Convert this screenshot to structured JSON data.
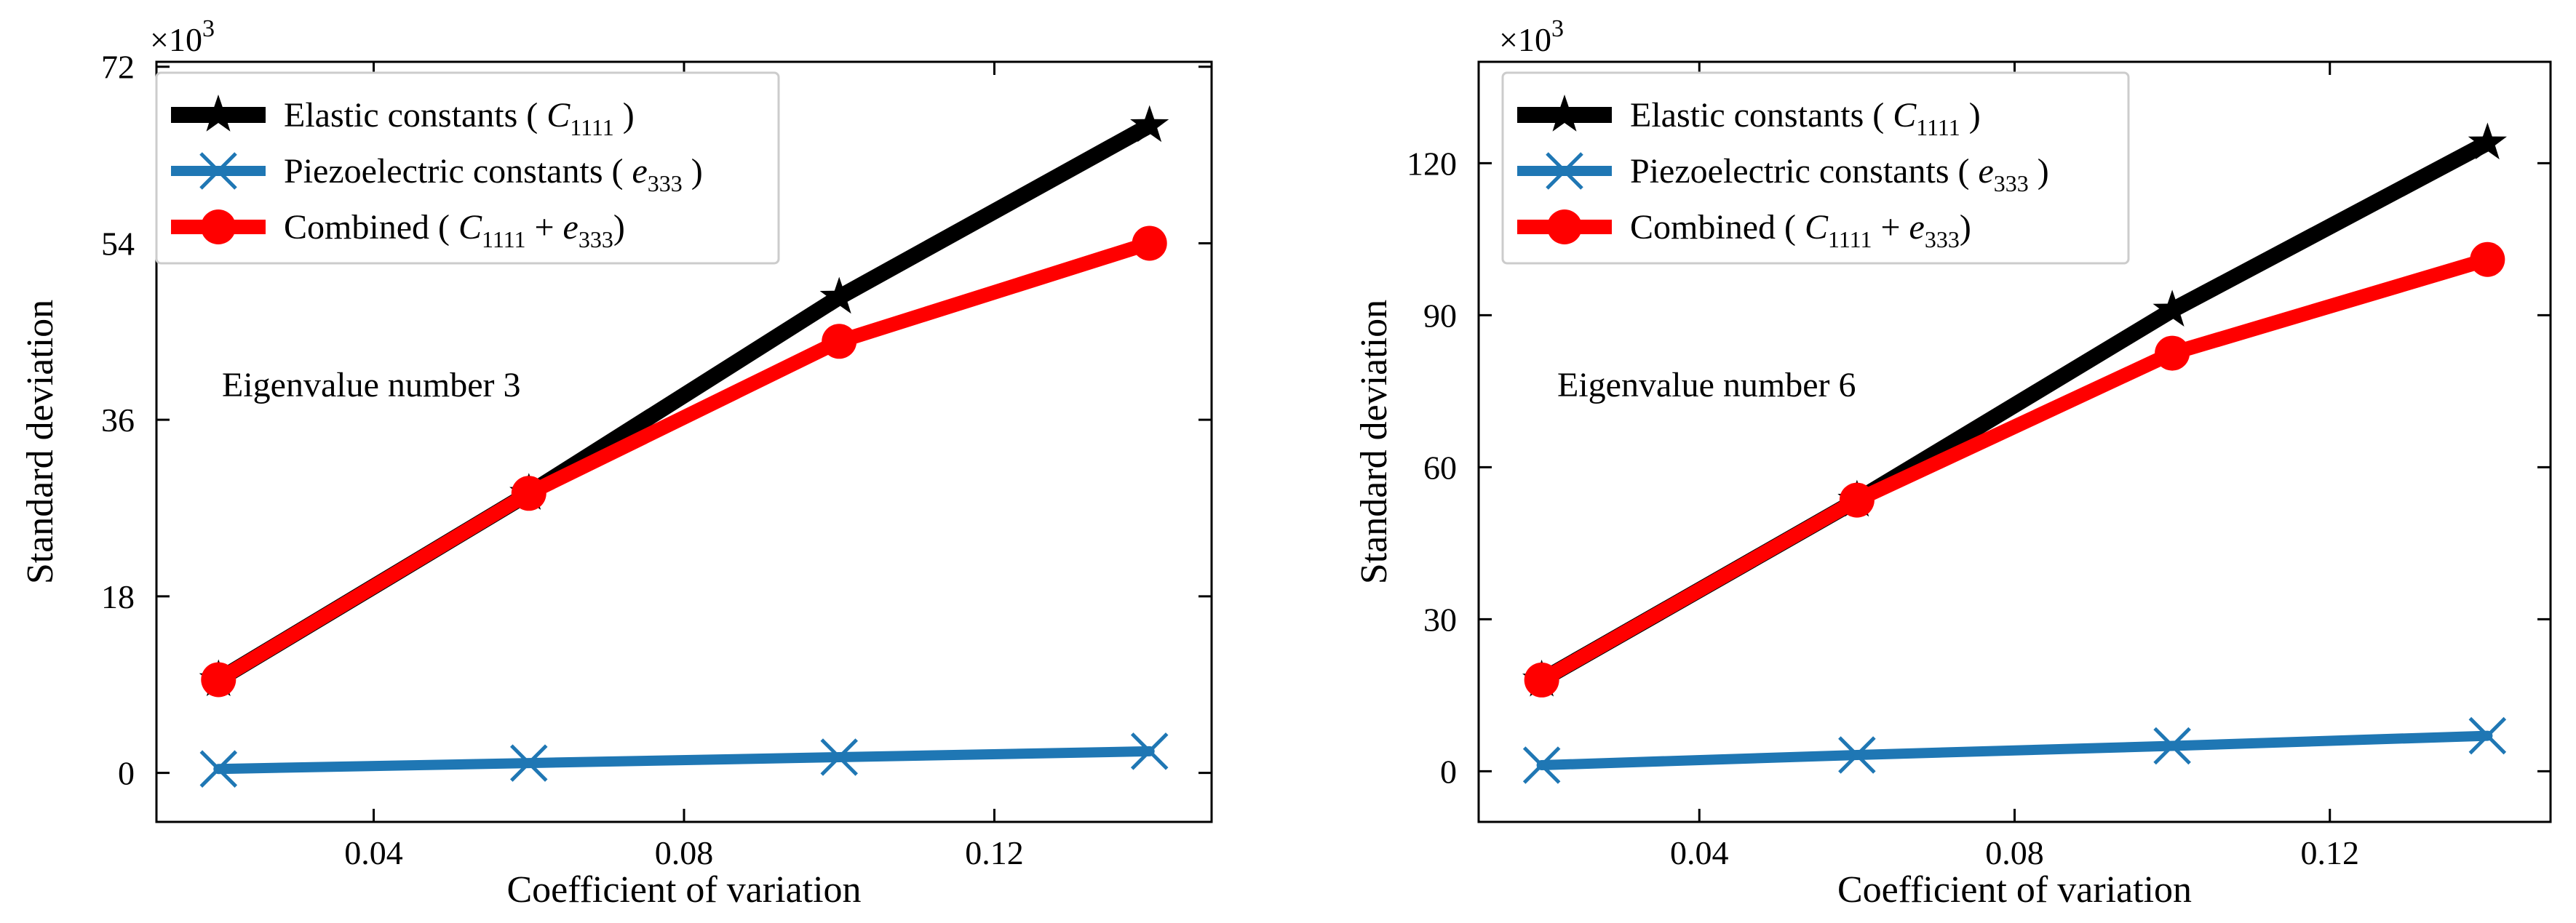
{
  "chart_data": [
    {
      "type": "line",
      "annotation": "Eigenvalue number 3",
      "multiplier": "×10",
      "multiplier_exp": "3",
      "xlabel": "Coefficient of variation",
      "ylabel": "Standard deviation",
      "xlim": [
        0.012,
        0.148
      ],
      "ylim": [
        -5,
        72.5
      ],
      "xticks": [
        0.04,
        0.08,
        0.12
      ],
      "xtick_labels": [
        "0.04",
        "0.08",
        "0.12"
      ],
      "yticks": [
        0,
        18,
        36,
        54,
        72
      ],
      "ytick_labels": [
        "0",
        "18",
        "36",
        "54",
        "72"
      ],
      "legend_position": "top-left",
      "x": [
        0.02,
        0.06,
        0.1,
        0.14
      ],
      "series": [
        {
          "name": "Elastic constants",
          "label": "Elastic constants (",
          "sym": "C",
          "sub": "1111",
          "tail": ")",
          "color": "#000000",
          "marker": "star",
          "values": [
            9.5,
            28.5,
            48.5,
            66.0
          ]
        },
        {
          "name": "Piezoelectric constants",
          "label": "Piezoelectric constants (",
          "sym": "e",
          "sub": "333",
          "tail": ")",
          "color": "#1f77b4",
          "marker": "x",
          "values": [
            0.4,
            1.0,
            1.6,
            2.2
          ]
        },
        {
          "name": "Combined",
          "label": "Combined (",
          "sym": "C",
          "sub": "1111",
          "sym2": "e",
          "sub2": "333",
          "tail": ")",
          "color": "#ff0000",
          "marker": "circle",
          "values": [
            9.5,
            28.5,
            44.0,
            54.0
          ]
        }
      ]
    },
    {
      "type": "line",
      "annotation": "Eigenvalue number 6",
      "multiplier": "×10",
      "multiplier_exp": "3",
      "xlabel": "Coefficient of variation",
      "ylabel": "Standard deviation",
      "xlim": [
        0.012,
        0.148
      ],
      "ylim": [
        -10,
        140
      ],
      "xticks": [
        0.04,
        0.08,
        0.12
      ],
      "xtick_labels": [
        "0.04",
        "0.08",
        "0.12"
      ],
      "yticks": [
        0,
        30,
        60,
        90,
        120
      ],
      "ytick_labels": [
        "0",
        "30",
        "60",
        "90",
        "120"
      ],
      "legend_position": "top-left",
      "x": [
        0.02,
        0.06,
        0.1,
        0.14
      ],
      "series": [
        {
          "name": "Elastic constants",
          "label": "Elastic constants (",
          "sym": "C",
          "sub": "1111",
          "tail": ")",
          "color": "#000000",
          "marker": "star",
          "values": [
            18.0,
            53.5,
            91.0,
            124.0
          ]
        },
        {
          "name": "Piezoelectric constants",
          "label": "Piezoelectric constants (",
          "sym": "e",
          "sub": "333",
          "tail": ")",
          "color": "#1f77b4",
          "marker": "x",
          "values": [
            1.2,
            3.2,
            5.0,
            7.0
          ]
        },
        {
          "name": "Combined",
          "label": "Combined (",
          "sym": "C",
          "sub": "1111",
          "sym2": "e",
          "sub2": "333",
          "tail": ")",
          "color": "#ff0000",
          "marker": "circle",
          "values": [
            18.0,
            53.5,
            82.5,
            101.0
          ]
        }
      ]
    }
  ]
}
